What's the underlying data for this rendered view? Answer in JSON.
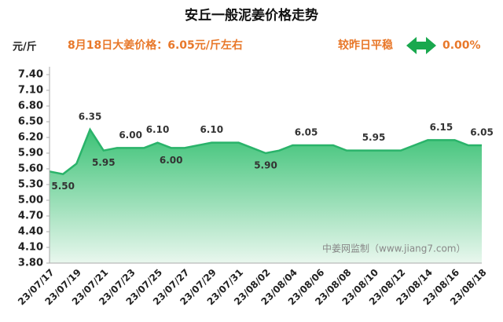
{
  "chart_data": {
    "type": "area",
    "title": "安丘一般泥姜价格走势",
    "subtitle": "8月18日大姜价格：6.05元/斤左右",
    "ylabel": "元/斤",
    "annotations": [
      "较昨日平稳",
      "0.00%",
      "中姜网监制（www.jiang7.com）"
    ],
    "categories": [
      "23/07/17",
      null,
      "23/07/19",
      null,
      "23/07/21",
      null,
      "23/07/23",
      null,
      "23/07/25",
      null,
      "23/07/27",
      null,
      "23/07/29",
      null,
      "23/07/31",
      null,
      "23/08/02",
      null,
      "23/08/04",
      null,
      "23/08/06",
      null,
      "23/08/08",
      null,
      "23/08/10",
      null,
      "23/08/12",
      null,
      "23/08/14",
      null,
      "23/08/16",
      null,
      "23/08/18"
    ],
    "series": [
      {
        "color": "#2ab36a",
        "values": [
          5.55,
          5.5,
          5.7,
          6.35,
          5.95,
          6.0,
          6.0,
          6.0,
          6.1,
          6.0,
          6.0,
          6.05,
          6.1,
          6.1,
          6.1,
          6.0,
          5.9,
          5.95,
          6.05,
          6.05,
          6.05,
          6.05,
          5.95,
          5.95,
          5.95,
          5.95,
          5.95,
          6.05,
          6.15,
          6.15,
          6.15,
          6.05,
          6.05
        ],
        "value_labels": [
          null,
          "5.50",
          null,
          "6.35",
          "5.95",
          null,
          "6.00",
          null,
          "6.10",
          "6.00",
          null,
          null,
          "6.10",
          null,
          null,
          null,
          "5.90",
          null,
          null,
          "6.05",
          null,
          null,
          null,
          null,
          "5.95",
          null,
          null,
          null,
          null,
          "6.15",
          null,
          null,
          "6.05"
        ]
      }
    ],
    "ylim": [
      3.8,
      7.4
    ],
    "yticks": [
      {
        "value": 3.8,
        "label": "3.80"
      },
      {
        "value": 4.1,
        "label": "4.10"
      },
      {
        "value": 4.4,
        "label": "4.40"
      },
      {
        "value": 4.7,
        "label": "4.70"
      },
      {
        "value": 5.0,
        "label": "5.00"
      },
      {
        "value": 5.3,
        "label": "5.30"
      },
      {
        "value": 5.6,
        "label": "5.60"
      },
      {
        "value": 5.9,
        "label": "5.90"
      },
      {
        "value": 6.2,
        "label": "6.20"
      },
      {
        "value": 6.5,
        "label": "6.50"
      },
      {
        "value": 6.8,
        "label": "6.80"
      },
      {
        "value": 7.1,
        "label": "7.10"
      },
      {
        "value": 7.4,
        "label": "7.40"
      }
    ],
    "grid": false
  }
}
